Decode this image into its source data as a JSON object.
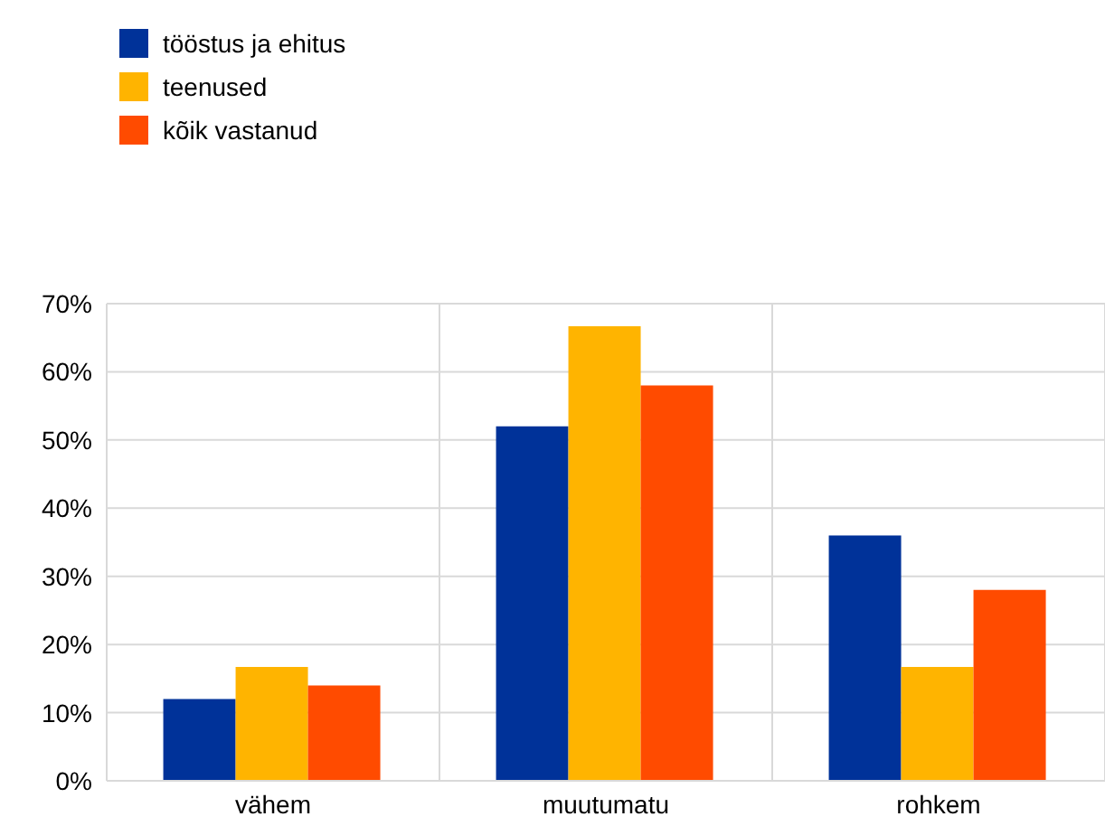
{
  "chart_data": {
    "type": "bar",
    "categories": [
      "vähem",
      "muutumatu",
      "rohkem"
    ],
    "series": [
      {
        "name": "tööstus ja ehitus",
        "color": "#003299",
        "values": [
          12,
          52,
          36
        ]
      },
      {
        "name": "teenused",
        "color": "#ffb400",
        "values": [
          16.7,
          66.7,
          16.7
        ]
      },
      {
        "name": "kõik vastanud",
        "color": "#ff4b00",
        "values": [
          14,
          58,
          28
        ]
      }
    ],
    "ylim": [
      0,
      70
    ],
    "yticks": [
      {
        "value": 0,
        "label": "0%"
      },
      {
        "value": 10,
        "label": "10%"
      },
      {
        "value": 20,
        "label": "20%"
      },
      {
        "value": 30,
        "label": "30%"
      },
      {
        "value": 40,
        "label": "40%"
      },
      {
        "value": 50,
        "label": "50%"
      },
      {
        "value": 60,
        "label": "60%"
      },
      {
        "value": 70,
        "label": "70%"
      }
    ],
    "grid": true,
    "legend": "top left"
  }
}
